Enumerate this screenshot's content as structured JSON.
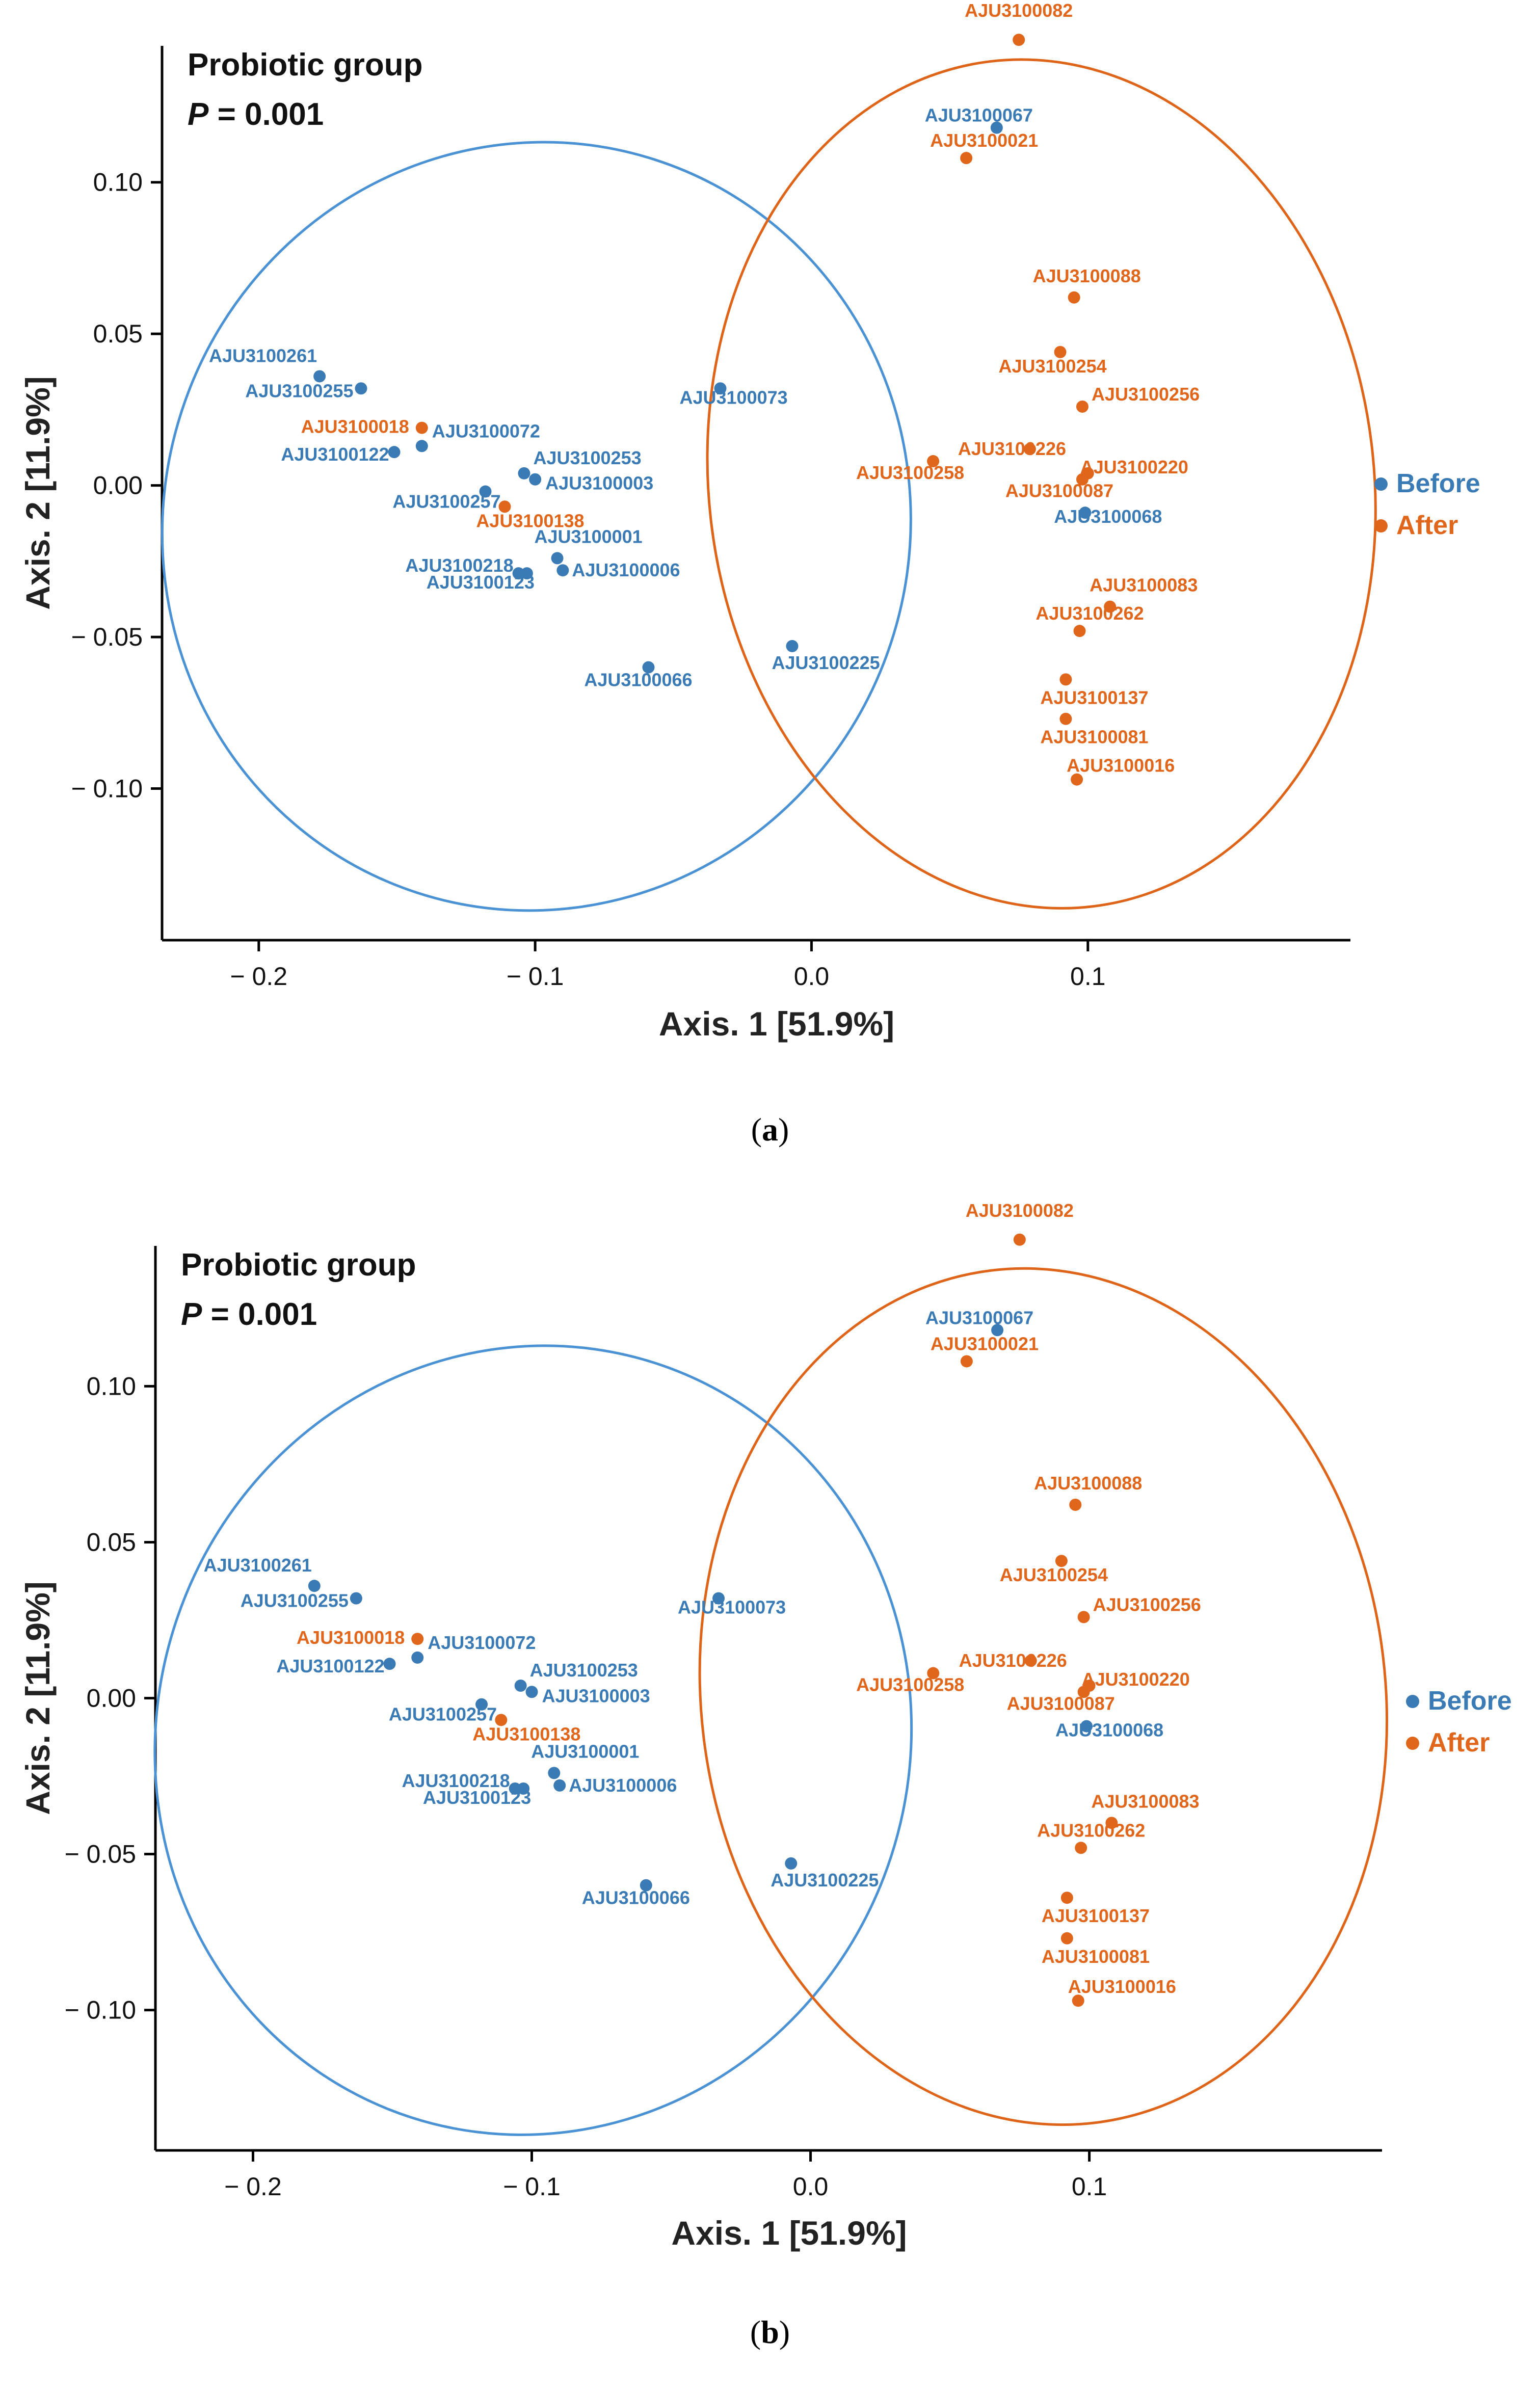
{
  "colors": {
    "before": "#3a7bb5",
    "after": "#e0661c",
    "axis": "#000000",
    "ellipse_before": "#4a92d4",
    "ellipse_after": "#dd6418"
  },
  "chart_data": [
    {
      "panel": "a",
      "type": "scatter",
      "title": "Probiotic group",
      "p_label": "P",
      "p_value": "= 0.001",
      "xlabel": "Axis. 1 [51.9%]",
      "ylabel": "Axis. 2 [11.9%]",
      "xlim": [
        -0.235,
        0.195
      ],
      "ylim": [
        -0.15,
        0.145
      ],
      "xticks": [
        -0.2,
        -0.1,
        0.0,
        0.1
      ],
      "xtick_labels": [
        "− 0.2",
        "− 0.1",
        "0.0",
        "0.1"
      ],
      "yticks": [
        0.1,
        0.05,
        0.0,
        -0.05,
        -0.1
      ],
      "ytick_labels": [
        "0.10",
        "0.05",
        "0.00",
        "− 0.05",
        "− 0.10"
      ],
      "legend": [
        "Before",
        "After"
      ],
      "legend_position": "right",
      "series": [
        {
          "name": "Before",
          "points": [
            {
              "id": "AJU3100261",
              "x": -0.178,
              "y": 0.036
            },
            {
              "id": "AJU3100255",
              "x": -0.163,
              "y": 0.032
            },
            {
              "id": "AJU3100122",
              "x": -0.151,
              "y": 0.011
            },
            {
              "id": "AJU3100072",
              "x": -0.141,
              "y": 0.013
            },
            {
              "id": "AJU3100257",
              "x": -0.118,
              "y": -0.002
            },
            {
              "id": "AJU3100253",
              "x": -0.104,
              "y": 0.004
            },
            {
              "id": "AJU3100003",
              "x": -0.1,
              "y": 0.002
            },
            {
              "id": "AJU3100001",
              "x": -0.092,
              "y": -0.024
            },
            {
              "id": "AJU3100218",
              "x": -0.106,
              "y": -0.029
            },
            {
              "id": "AJU3100123",
              "x": -0.103,
              "y": -0.029
            },
            {
              "id": "AJU3100006",
              "x": -0.09,
              "y": -0.028
            },
            {
              "id": "AJU3100066",
              "x": -0.059,
              "y": -0.06
            },
            {
              "id": "AJU3100225",
              "x": -0.007,
              "y": -0.053
            },
            {
              "id": "AJU3100073",
              "x": -0.033,
              "y": 0.032
            },
            {
              "id": "AJU3100067",
              "x": 0.067,
              "y": 0.118
            },
            {
              "id": "AJU3100068",
              "x": 0.099,
              "y": -0.009
            }
          ]
        },
        {
          "name": "After",
          "points": [
            {
              "id": "AJU3100082",
              "x": 0.075,
              "y": 0.147
            },
            {
              "id": "AJU3100021",
              "x": 0.056,
              "y": 0.108
            },
            {
              "id": "AJU3100088",
              "x": 0.095,
              "y": 0.062
            },
            {
              "id": "AJU3100254",
              "x": 0.09,
              "y": 0.044
            },
            {
              "id": "AJU3100256",
              "x": 0.098,
              "y": 0.026
            },
            {
              "id": "AJU3100258",
              "x": 0.044,
              "y": 0.008
            },
            {
              "id": "AJU3100226",
              "x": 0.079,
              "y": 0.012
            },
            {
              "id": "AJU3100220",
              "x": 0.1,
              "y": 0.004
            },
            {
              "id": "AJU3100087",
              "x": 0.098,
              "y": 0.002
            },
            {
              "id": "AJU3100083",
              "x": 0.108,
              "y": -0.04
            },
            {
              "id": "AJU3100262",
              "x": 0.097,
              "y": -0.048
            },
            {
              "id": "AJU3100137",
              "x": 0.092,
              "y": -0.064
            },
            {
              "id": "AJU3100081",
              "x": 0.092,
              "y": -0.077
            },
            {
              "id": "AJU3100016",
              "x": 0.096,
              "y": -0.097
            },
            {
              "id": "AJU3100018",
              "x": -0.141,
              "y": 0.019
            },
            {
              "id": "AJU3100138",
              "x": -0.111,
              "y": -0.007
            }
          ]
        }
      ]
    },
    {
      "panel": "b",
      "type": "scatter",
      "title": "Probiotic group",
      "p_label": "P",
      "p_value": "= 0.001",
      "xlabel": "Axis. 1 [51.9%]",
      "ylabel": "Axis. 2 [11.9%]",
      "xlim": [
        -0.235,
        0.205
      ],
      "ylim": [
        -0.145,
        0.145
      ],
      "xticks": [
        -0.2,
        -0.1,
        0.0,
        0.1
      ],
      "xtick_labels": [
        "− 0.2",
        "− 0.1",
        "0.0",
        "0.1"
      ],
      "yticks": [
        0.1,
        0.05,
        0.0,
        -0.05,
        -0.1
      ],
      "ytick_labels": [
        "0.10",
        "0.05",
        "0.00",
        "− 0.05",
        "− 0.10"
      ],
      "legend": [
        "Before",
        "After"
      ],
      "legend_position": "right",
      "series": [
        {
          "name": "Before",
          "points": [
            {
              "id": "AJU3100261",
              "x": -0.178,
              "y": 0.036
            },
            {
              "id": "AJU3100255",
              "x": -0.163,
              "y": 0.032
            },
            {
              "id": "AJU3100122",
              "x": -0.151,
              "y": 0.011
            },
            {
              "id": "AJU3100072",
              "x": -0.141,
              "y": 0.013
            },
            {
              "id": "AJU3100257",
              "x": -0.118,
              "y": -0.002
            },
            {
              "id": "AJU3100253",
              "x": -0.104,
              "y": 0.004
            },
            {
              "id": "AJU3100003",
              "x": -0.1,
              "y": 0.002
            },
            {
              "id": "AJU3100001",
              "x": -0.092,
              "y": -0.024
            },
            {
              "id": "AJU3100218",
              "x": -0.106,
              "y": -0.029
            },
            {
              "id": "AJU3100123",
              "x": -0.103,
              "y": -0.029
            },
            {
              "id": "AJU3100006",
              "x": -0.09,
              "y": -0.028
            },
            {
              "id": "AJU3100066",
              "x": -0.059,
              "y": -0.06
            },
            {
              "id": "AJU3100225",
              "x": -0.007,
              "y": -0.053
            },
            {
              "id": "AJU3100073",
              "x": -0.033,
              "y": 0.032
            },
            {
              "id": "AJU3100067",
              "x": 0.067,
              "y": 0.118
            },
            {
              "id": "AJU3100068",
              "x": 0.099,
              "y": -0.009
            }
          ]
        },
        {
          "name": "After",
          "points": [
            {
              "id": "AJU3100082",
              "x": 0.075,
              "y": 0.147
            },
            {
              "id": "AJU3100021",
              "x": 0.056,
              "y": 0.108
            },
            {
              "id": "AJU3100088",
              "x": 0.095,
              "y": 0.062
            },
            {
              "id": "AJU3100254",
              "x": 0.09,
              "y": 0.044
            },
            {
              "id": "AJU3100256",
              "x": 0.098,
              "y": 0.026
            },
            {
              "id": "AJU3100258",
              "x": 0.044,
              "y": 0.008
            },
            {
              "id": "AJU3100226",
              "x": 0.079,
              "y": 0.012
            },
            {
              "id": "AJU3100220",
              "x": 0.1,
              "y": 0.004
            },
            {
              "id": "AJU3100087",
              "x": 0.098,
              "y": 0.002
            },
            {
              "id": "AJU3100083",
              "x": 0.108,
              "y": -0.04
            },
            {
              "id": "AJU3100262",
              "x": 0.097,
              "y": -0.048
            },
            {
              "id": "AJU3100137",
              "x": 0.092,
              "y": -0.064
            },
            {
              "id": "AJU3100081",
              "x": 0.092,
              "y": -0.077
            },
            {
              "id": "AJU3100016",
              "x": 0.096,
              "y": -0.097
            },
            {
              "id": "AJU3100018",
              "x": -0.141,
              "y": 0.019
            },
            {
              "id": "AJU3100138",
              "x": -0.111,
              "y": -0.007
            }
          ]
        }
      ]
    }
  ],
  "captions": [
    {
      "open": "(",
      "letter": "a",
      "close": ")"
    },
    {
      "open": "(",
      "letter": "b",
      "close": ")"
    }
  ]
}
